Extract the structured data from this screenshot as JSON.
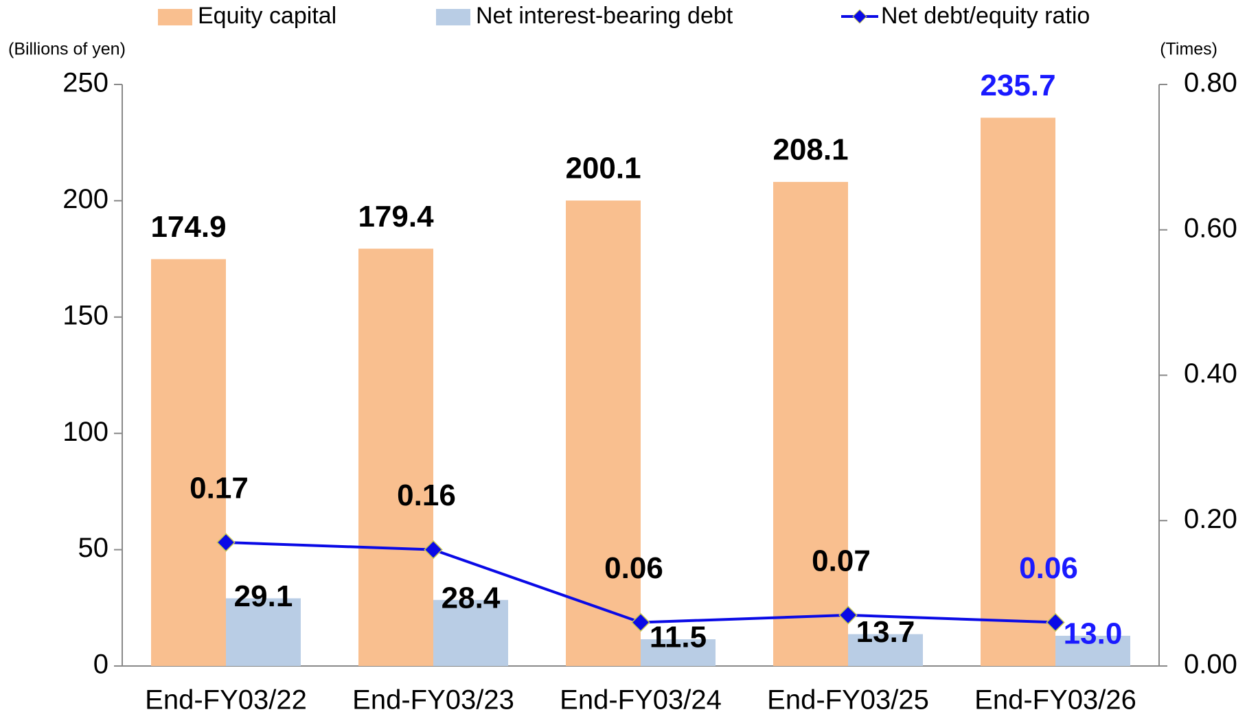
{
  "chart_data": {
    "type": "bar_line",
    "categories": [
      "End-FY03/22",
      "End-FY03/23",
      "End-FY03/24",
      "End-FY03/25",
      "End-FY03/26"
    ],
    "series": [
      {
        "name": "Equity capital",
        "color": "#f9bf8f",
        "values": [
          174.9,
          179.4,
          200.1,
          208.1,
          235.7
        ]
      },
      {
        "name": "Net interest-bearing debt",
        "color": "#b9cde5",
        "values": [
          29.1,
          28.4,
          11.5,
          13.7,
          13.0
        ],
        "value_labels": [
          "29.1",
          "28.4",
          "11.5",
          "13.7",
          "13.0"
        ]
      },
      {
        "name": "Net debt/equity ratio",
        "color": "#0a0ae6",
        "axis": "y2",
        "values": [
          0.17,
          0.16,
          0.06,
          0.07,
          0.06
        ]
      }
    ],
    "ylabel": "(Billions of yen)",
    "y2label": "(Times)",
    "ylim": [
      0,
      250
    ],
    "yticks": [
      0,
      50,
      100,
      150,
      200,
      250
    ],
    "y2lim": [
      0,
      0.8
    ],
    "y2ticks": [
      {
        "value": 0,
        "label": "0.00"
      },
      {
        "value": 0.2,
        "label": "0.20"
      },
      {
        "value": 0.4,
        "label": "0.40"
      },
      {
        "value": 0.6,
        "label": "0.60"
      },
      {
        "value": 0.8,
        "label": "0.80"
      }
    ],
    "highlight": {
      "index": 4,
      "color": "#1a1aff"
    },
    "legend": "top",
    "grid": false
  }
}
